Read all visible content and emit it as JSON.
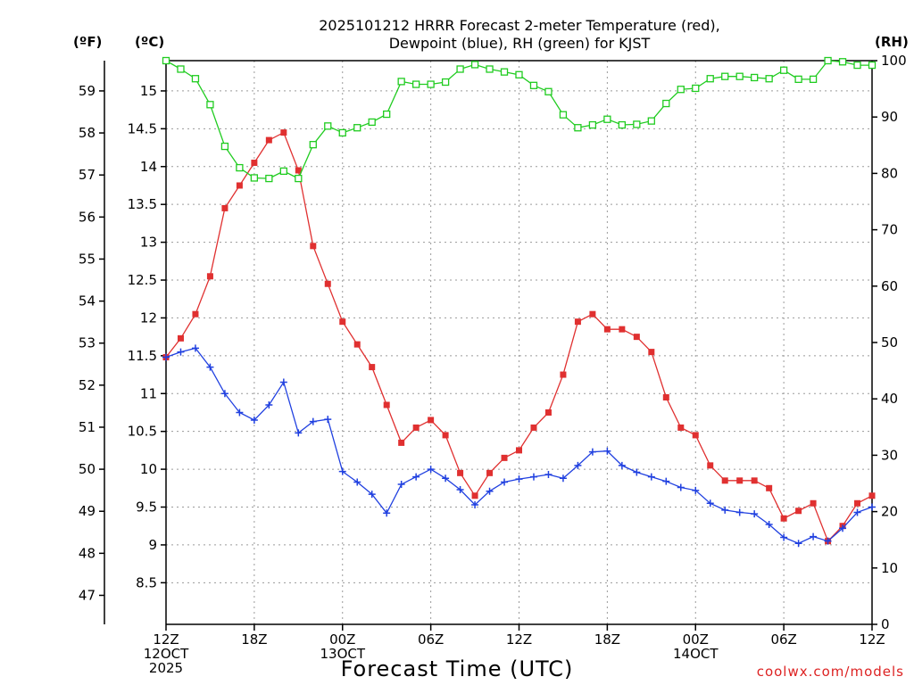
{
  "chart_data": {
    "type": "line",
    "title_lines": [
      "2025101212 HRRR Forecast 2-meter Temperature (red),",
      "Dewpoint (blue), RH (green) for KJST"
    ],
    "xlabel": "Forecast Time (UTC)",
    "credit": "coolwx.com/models",
    "unit_labels": {
      "fahrenheit": "(ºF)",
      "celsius": "(ºC)",
      "rh": "(RH)"
    },
    "x_hours": [
      0,
      1,
      2,
      3,
      4,
      5,
      6,
      7,
      8,
      9,
      10,
      11,
      12,
      13,
      14,
      15,
      16,
      17,
      18,
      19,
      20,
      21,
      22,
      23,
      24,
      25,
      26,
      27,
      28,
      29,
      30,
      31,
      32,
      33,
      34,
      35,
      36,
      37,
      38,
      39,
      40,
      41,
      42,
      43,
      44,
      45,
      46,
      47,
      48
    ],
    "x_tick_labels": [
      {
        "hour": 0,
        "lines": [
          "12Z",
          "12OCT",
          "2025"
        ]
      },
      {
        "hour": 6,
        "lines": [
          "18Z"
        ]
      },
      {
        "hour": 12,
        "lines": [
          "00Z",
          "13OCT"
        ]
      },
      {
        "hour": 18,
        "lines": [
          "06Z"
        ]
      },
      {
        "hour": 24,
        "lines": [
          "12Z"
        ]
      },
      {
        "hour": 30,
        "lines": [
          "18Z"
        ]
      },
      {
        "hour": 36,
        "lines": [
          "00Z",
          "14OCT"
        ]
      },
      {
        "hour": 42,
        "lines": [
          "06Z"
        ]
      },
      {
        "hour": 48,
        "lines": [
          "12Z"
        ]
      }
    ],
    "celsius_axis": {
      "range": [
        7.95,
        15.4
      ],
      "ticks": [
        "8.5",
        "9",
        "9.5",
        "10",
        "10.5",
        "11",
        "11.5",
        "12",
        "12.5",
        "13",
        "13.5",
        "14",
        "14.5",
        "15"
      ]
    },
    "fahrenheit_axis": {
      "ticks": [
        47,
        48,
        49,
        50,
        51,
        52,
        53,
        54,
        55,
        56,
        57,
        58,
        59
      ]
    },
    "rh_axis": {
      "range": [
        0,
        100
      ],
      "ticks": [
        0,
        10,
        20,
        30,
        40,
        50,
        60,
        70,
        80,
        90,
        100
      ]
    },
    "series": [
      {
        "name": "Temperature",
        "color": "#e03030",
        "marker": "filled-square",
        "axis": "celsius",
        "values": [
          11.48,
          11.73,
          12.05,
          12.55,
          13.45,
          13.75,
          14.05,
          14.35,
          14.45,
          13.95,
          12.95,
          12.45,
          11.95,
          11.65,
          11.35,
          10.85,
          10.35,
          10.55,
          10.65,
          10.45,
          9.95,
          9.65,
          9.95,
          10.15,
          10.25,
          10.55,
          10.75,
          11.25,
          11.95,
          12.05,
          11.85,
          11.85,
          11.75,
          11.55,
          10.95,
          10.55,
          10.45,
          10.05,
          9.85,
          9.85,
          9.85,
          9.75,
          9.35,
          9.45,
          9.55,
          9.05,
          9.25,
          9.55,
          9.65
        ]
      },
      {
        "name": "Dewpoint",
        "color": "#2040e0",
        "marker": "plus",
        "axis": "celsius",
        "values": [
          11.48,
          11.55,
          11.6,
          11.35,
          11.0,
          10.75,
          10.65,
          10.85,
          11.15,
          10.48,
          10.63,
          10.66,
          9.97,
          9.83,
          9.67,
          9.42,
          9.8,
          9.9,
          10.0,
          9.88,
          9.73,
          9.53,
          9.71,
          9.83,
          9.87,
          9.9,
          9.93,
          9.88,
          10.05,
          10.23,
          10.24,
          10.05,
          9.96,
          9.9,
          9.84,
          9.76,
          9.72,
          9.55,
          9.46,
          9.43,
          9.41,
          9.27,
          9.1,
          9.02,
          9.11,
          9.05,
          9.22,
          9.43,
          9.5
        ]
      },
      {
        "name": "RH",
        "color": "#20cc20",
        "marker": "hollow-square",
        "axis": "rh",
        "values": [
          100,
          98.5,
          96.8,
          92.2,
          84.8,
          81,
          79.2,
          79.1,
          80.4,
          79.1,
          85.1,
          88.4,
          87.2,
          88.1,
          89.1,
          90.5,
          96.3,
          95.8,
          95.8,
          96.2,
          98.5,
          99.3,
          98.5,
          98,
          97.5,
          95.6,
          94.5,
          90.4,
          88.1,
          88.6,
          89.6,
          88.6,
          88.7,
          89.3,
          92.4,
          94.9,
          95.1,
          96.8,
          97.2,
          97.2,
          97,
          96.8,
          98.3,
          96.7,
          96.7,
          100,
          99.8,
          99.2,
          99.2
        ]
      }
    ],
    "grid": true,
    "legend": "none"
  }
}
